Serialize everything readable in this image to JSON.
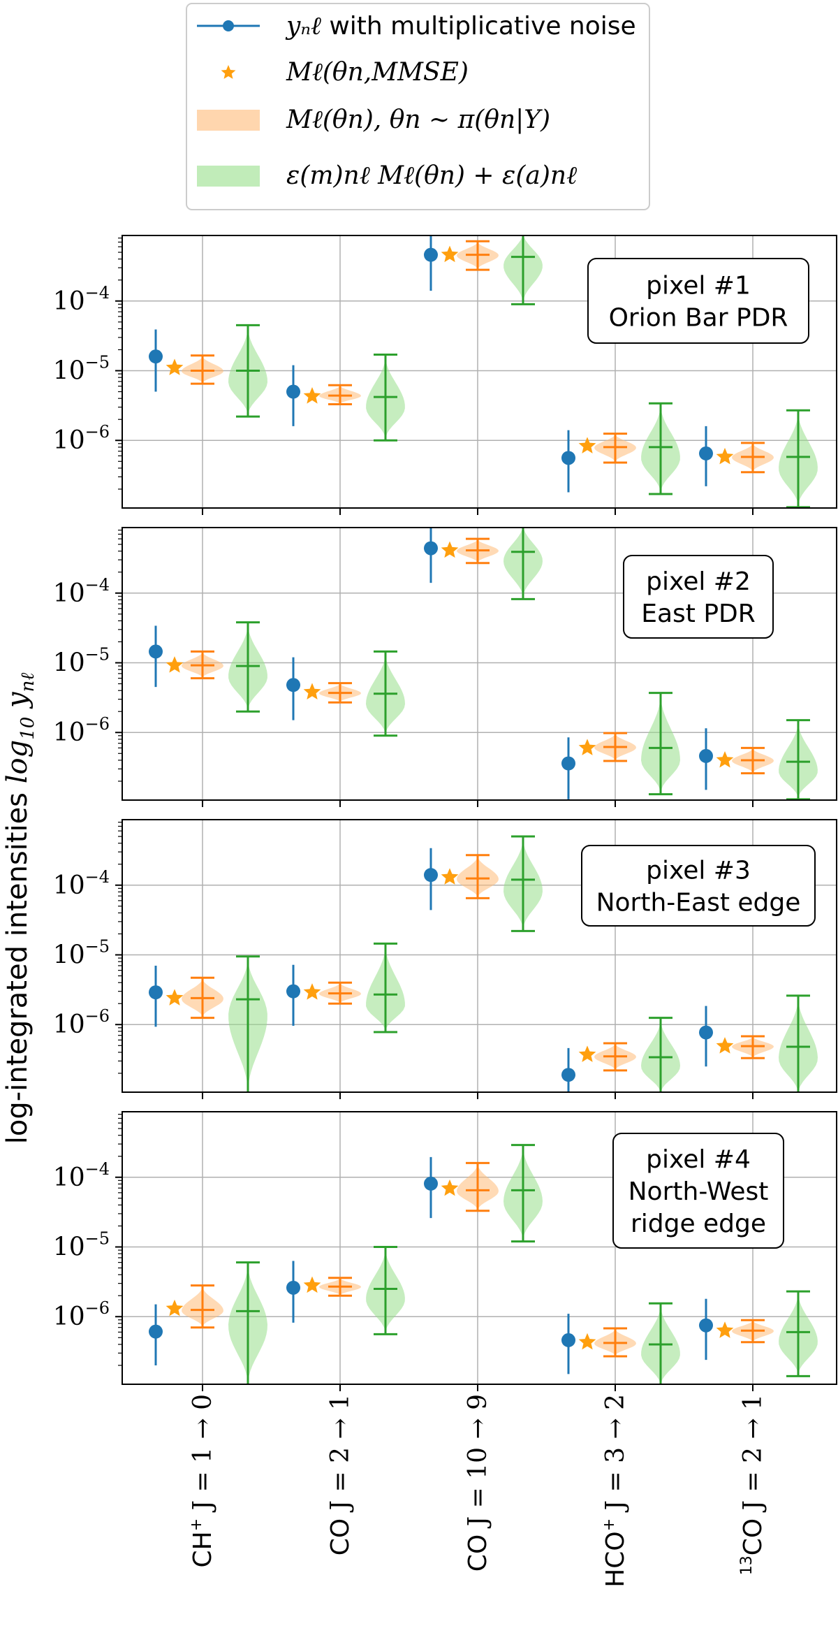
{
  "chart_data": {
    "type": "scatter",
    "title": "",
    "ylabel": "log-integrated intensities log10 yₙℓ",
    "yscale": "log",
    "colors": {
      "observation": "#1f77b4",
      "mmse": "#ff9f0e",
      "model": "#ff7f0e",
      "noisy_model": "#2ca02c",
      "model_fill": "#ffbb78",
      "noisy_fill": "#98df8a"
    },
    "categories": [
      {
        "base": "CH",
        "sup": "+",
        "rest": " J = 1 → 0"
      },
      {
        "base": "CO",
        "sup": "",
        "rest": " J = 2 → 1"
      },
      {
        "base": "CO",
        "sup": "",
        "rest": " J = 10 → 9"
      },
      {
        "base": "HCO",
        "sup": "+",
        "rest": " J = 3 → 2"
      },
      {
        "pre": "13",
        "base": "CO",
        "sup": "",
        "rest": " J = 2 → 1"
      }
    ],
    "legend": {
      "position": "top-center",
      "entries": [
        {
          "name": "yₙℓ with multiplicative noise",
          "math": "yₙℓ",
          "text": " with multiplicative noise"
        },
        {
          "name": "Mℓ(θn,MMSE)"
        },
        {
          "name": "Mℓ(θn), θn ∼ π(θn|Y)"
        },
        {
          "name": "ε(m)nℓ Mℓ(θn) + ε(a)nℓ"
        }
      ]
    },
    "panels": [
      {
        "label_line1": "pixel #1",
        "label_line2": "Orion Bar PDR",
        "label_line3": "",
        "ylim_exp": [
          -6.97,
          -3.06
        ],
        "yticks": [
          {
            "base": "10",
            "exp": "−4",
            "value_exp": -4
          },
          {
            "base": "10",
            "exp": "−5",
            "value_exp": -5
          },
          {
            "base": "10",
            "exp": "−6",
            "value_exp": -6
          }
        ],
        "observations": [
          {
            "y": 1.6e-05,
            "lo": 5e-06,
            "hi": 3.9e-05
          },
          {
            "y": 5e-06,
            "lo": 1.6e-06,
            "hi": 1.2e-05
          },
          {
            "y": 0.00046,
            "lo": 0.00014,
            "hi": 0.00095
          },
          {
            "y": 5.6e-07,
            "lo": 1.8e-07,
            "hi": 1.4e-06
          },
          {
            "y": 6.5e-07,
            "lo": 2.2e-07,
            "hi": 1.6e-06
          }
        ],
        "mmse": [
          1.1e-05,
          4.3e-06,
          0.00046,
          8.3e-07,
          5.8e-07
        ],
        "model_dist": [
          {
            "median": 1e-05,
            "lo": 6.5e-06,
            "hi": 1.65e-05
          },
          {
            "median": 4.4e-06,
            "lo": 3.3e-06,
            "hi": 6.2e-06
          },
          {
            "median": 0.00046,
            "lo": 0.00028,
            "hi": 0.00072
          },
          {
            "median": 8e-07,
            "lo": 4.8e-07,
            "hi": 1.25e-06
          },
          {
            "median": 5.8e-07,
            "lo": 3.5e-07,
            "hi": 9.2e-07
          }
        ],
        "noisy_dist": [
          {
            "median": 1e-05,
            "lo": 2.2e-06,
            "hi": 4.5e-05
          },
          {
            "median": 4.2e-06,
            "lo": 1e-06,
            "hi": 1.7e-05
          },
          {
            "median": 0.00043,
            "lo": 9e-05,
            "hi": 0.001
          },
          {
            "median": 8e-07,
            "lo": 1.7e-07,
            "hi": 3.4e-06
          },
          {
            "median": 5.8e-07,
            "lo": 1.1e-07,
            "hi": 2.7e-06
          }
        ]
      },
      {
        "label_line1": "pixel #2",
        "label_line2": "East PDR",
        "label_line3": "",
        "ylim_exp": [
          -6.97,
          -3.06
        ],
        "yticks": [
          {
            "base": "10",
            "exp": "−4",
            "value_exp": -4
          },
          {
            "base": "10",
            "exp": "−5",
            "value_exp": -5
          },
          {
            "base": "10",
            "exp": "−6",
            "value_exp": -6
          }
        ],
        "observations": [
          {
            "y": 1.45e-05,
            "lo": 4.5e-06,
            "hi": 3.4e-05
          },
          {
            "y": 4.8e-06,
            "lo": 1.5e-06,
            "hi": 1.2e-05
          },
          {
            "y": 0.00044,
            "lo": 0.00014,
            "hi": 0.00095
          },
          {
            "y": 3.6e-07,
            "lo": 1.1e-07,
            "hi": 8.5e-07
          },
          {
            "y": 4.6e-07,
            "lo": 1.5e-07,
            "hi": 1.15e-06
          }
        ],
        "mmse": [
          9.2e-06,
          3.8e-06,
          0.00041,
          6e-07,
          4e-07
        ],
        "model_dist": [
          {
            "median": 9.2e-06,
            "lo": 6e-06,
            "hi": 1.45e-05
          },
          {
            "median": 3.7e-06,
            "lo": 2.7e-06,
            "hi": 5.1e-06
          },
          {
            "median": 0.00041,
            "lo": 0.00027,
            "hi": 0.0006
          },
          {
            "median": 6.2e-07,
            "lo": 3.9e-07,
            "hi": 9.8e-07
          },
          {
            "median": 4e-07,
            "lo": 2.6e-07,
            "hi": 6e-07
          }
        ],
        "noisy_dist": [
          {
            "median": 9e-06,
            "lo": 2e-06,
            "hi": 3.8e-05
          },
          {
            "median": 3.6e-06,
            "lo": 9e-07,
            "hi": 1.45e-05
          },
          {
            "median": 0.00039,
            "lo": 8.2e-05,
            "hi": 0.001
          },
          {
            "median": 6e-07,
            "lo": 1.3e-07,
            "hi": 3.7e-06
          },
          {
            "median": 3.8e-07,
            "lo": 1.1e-07,
            "hi": 1.5e-06
          }
        ]
      },
      {
        "label_line1": "pixel #3",
        "label_line2": "North-East edge",
        "label_line3": "",
        "ylim_exp": [
          -6.97,
          -3.06
        ],
        "yticks": [
          {
            "base": "10",
            "exp": "−4",
            "value_exp": -4
          },
          {
            "base": "10",
            "exp": "−5",
            "value_exp": -5
          },
          {
            "base": "10",
            "exp": "−6",
            "value_exp": -6
          }
        ],
        "observations": [
          {
            "y": 2.9e-06,
            "lo": 9.3e-07,
            "hi": 7e-06
          },
          {
            "y": 3e-06,
            "lo": 9.6e-07,
            "hi": 7.2e-06
          },
          {
            "y": 0.00014,
            "lo": 4.4e-05,
            "hi": 0.00034
          },
          {
            "y": 1.9e-07,
            "lo": 1e-07,
            "hi": 4.6e-07
          },
          {
            "y": 7.7e-07,
            "lo": 2.5e-07,
            "hi": 1.85e-06
          }
        ],
        "mmse": [
          2.4e-06,
          2.9e-06,
          0.00013,
          3.7e-07,
          4.9e-07
        ],
        "model_dist": [
          {
            "median": 2.4e-06,
            "lo": 1.25e-06,
            "hi": 4.7e-06
          },
          {
            "median": 2.8e-06,
            "lo": 2e-06,
            "hi": 4e-06
          },
          {
            "median": 0.000125,
            "lo": 6.5e-05,
            "hi": 0.00027
          },
          {
            "median": 3.5e-07,
            "lo": 2.2e-07,
            "hi": 5.4e-07
          },
          {
            "median": 4.9e-07,
            "lo": 3.3e-07,
            "hi": 6.8e-07
          }
        ],
        "noisy_dist": [
          {
            "median": 2.3e-06,
            "lo": 1e-07,
            "hi": 9.5e-06
          },
          {
            "median": 2.7e-06,
            "lo": 7.8e-07,
            "hi": 1.45e-05
          },
          {
            "median": 0.00012,
            "lo": 2.2e-05,
            "hi": 0.0005
          },
          {
            "median": 3.4e-07,
            "lo": 1e-07,
            "hi": 1.25e-06
          },
          {
            "median": 4.8e-07,
            "lo": 1e-07,
            "hi": 2.6e-06
          }
        ]
      },
      {
        "label_line1": "pixel #4",
        "label_line2": "North-West",
        "label_line3": "ridge edge",
        "ylim_exp": [
          -6.97,
          -3.06
        ],
        "yticks": [
          {
            "base": "10",
            "exp": "−4",
            "value_exp": -4
          },
          {
            "base": "10",
            "exp": "−5",
            "value_exp": -5
          },
          {
            "base": "10",
            "exp": "−6",
            "value_exp": -6
          }
        ],
        "observations": [
          {
            "y": 6.1e-07,
            "lo": 2e-07,
            "hi": 1.5e-06
          },
          {
            "y": 2.6e-06,
            "lo": 8.2e-07,
            "hi": 6.3e-06
          },
          {
            "y": 8.1e-05,
            "lo": 2.6e-05,
            "hi": 0.000195
          },
          {
            "y": 4.6e-07,
            "lo": 1.5e-07,
            "hi": 1.1e-06
          },
          {
            "y": 7.5e-07,
            "lo": 2.4e-07,
            "hi": 1.8e-06
          }
        ],
        "mmse": [
          1.3e-06,
          2.8e-06,
          6.9e-05,
          4.3e-07,
          6.3e-07
        ],
        "model_dist": [
          {
            "median": 1.25e-06,
            "lo": 7e-07,
            "hi": 2.8e-06
          },
          {
            "median": 2.7e-06,
            "lo": 2e-06,
            "hi": 3.6e-06
          },
          {
            "median": 6.5e-05,
            "lo": 3.3e-05,
            "hi": 0.00016
          },
          {
            "median": 4.2e-07,
            "lo": 2.7e-07,
            "hi": 6.8e-07
          },
          {
            "median": 6.3e-07,
            "lo": 4.3e-07,
            "hi": 8.9e-07
          }
        ],
        "noisy_dist": [
          {
            "median": 1.2e-06,
            "lo": 1e-07,
            "hi": 6e-06
          },
          {
            "median": 2.5e-06,
            "lo": 5.6e-07,
            "hi": 1e-05
          },
          {
            "median": 6.5e-05,
            "lo": 1.2e-05,
            "hi": 0.00029
          },
          {
            "median": 4e-07,
            "lo": 1e-07,
            "hi": 1.55e-06
          },
          {
            "median": 6e-07,
            "lo": 1.4e-07,
            "hi": 2.3e-06
          }
        ]
      }
    ]
  }
}
